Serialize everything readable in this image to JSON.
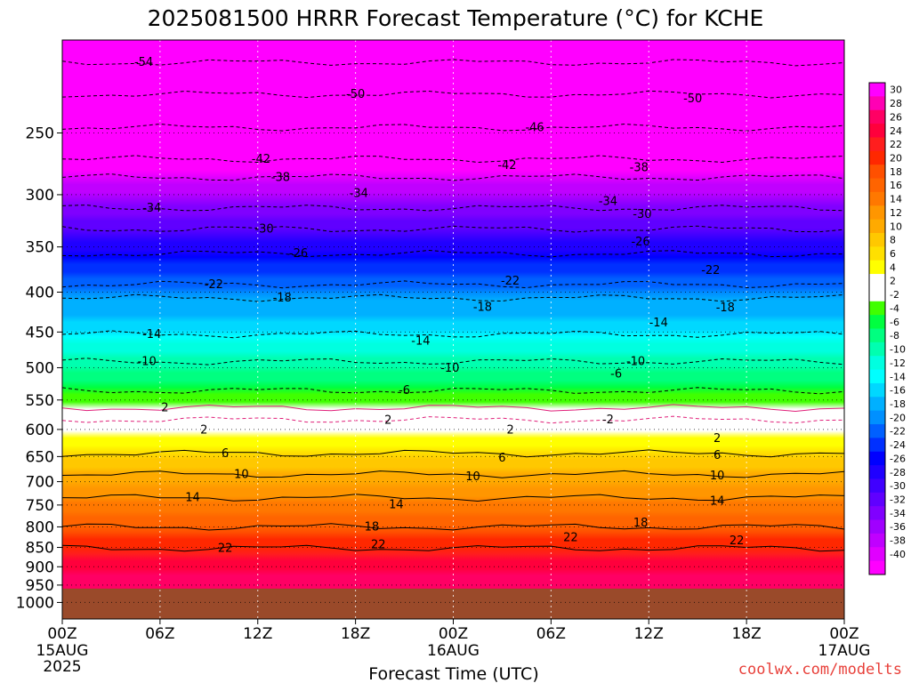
{
  "title": "2025081500 HRRR Forecast Temperature (°C) for KCHE",
  "credit": "coolwx.com/modelts",
  "xlabel": "Forecast Time (UTC)",
  "chart_data": {
    "type": "heatmap",
    "title": "2025081500 HRRR Forecast Temperature (°C) for KCHE",
    "xlabel": "Forecast Time (UTC)",
    "ylabel": "",
    "y_scale": "log",
    "y_inverted": true,
    "ylim": [
      1050,
      190
    ],
    "xlim": [
      0,
      48
    ],
    "x_ticks": [
      {
        "hour": 0,
        "label": "00Z",
        "sub": [
          "15AUG",
          "2025"
        ]
      },
      {
        "hour": 6,
        "label": "06Z",
        "sub": []
      },
      {
        "hour": 12,
        "label": "12Z",
        "sub": []
      },
      {
        "hour": 18,
        "label": "18Z",
        "sub": []
      },
      {
        "hour": 24,
        "label": "00Z",
        "sub": [
          "16AUG"
        ]
      },
      {
        "hour": 30,
        "label": "06Z",
        "sub": []
      },
      {
        "hour": 36,
        "label": "12Z",
        "sub": []
      },
      {
        "hour": 42,
        "label": "18Z",
        "sub": []
      },
      {
        "hour": 48,
        "label": "00Z",
        "sub": [
          "17AUG"
        ]
      }
    ],
    "y_ticks": [
      "250",
      "300",
      "350",
      "400",
      "450",
      "500",
      "550",
      "600",
      "650",
      "700",
      "750",
      "800",
      "850",
      "900",
      "950",
      "1000"
    ],
    "y_tick_values": [
      250,
      300,
      350,
      400,
      450,
      500,
      550,
      600,
      650,
      700,
      750,
      800,
      850,
      900,
      950,
      1000
    ],
    "surface_pressure_hpa": 960,
    "grid": true,
    "colorbar": {
      "placement": "right",
      "ticks": [
        "30",
        "28",
        "26",
        "24",
        "22",
        "20",
        "18",
        "16",
        "14",
        "12",
        "10",
        "8",
        "6",
        "4",
        "2",
        "-2",
        "-4",
        "-6",
        "-8",
        "-10",
        "-12",
        "-14",
        "-16",
        "-18",
        "-20",
        "-22",
        "-24",
        "-26",
        "-28",
        "-30",
        "-32",
        "-34",
        "-36",
        "-38",
        "-40"
      ],
      "colors": [
        "#ff00ff",
        "#ff00b4",
        "#ff0064",
        "#ff003c",
        "#ff1e1e",
        "#ff2800",
        "#ff5000",
        "#ff6400",
        "#ff7800",
        "#ff9600",
        "#ffaa00",
        "#ffc800",
        "#ffe000",
        "#ffff00",
        "#ffffff",
        "#ffffff",
        "#40ff00",
        "#00ff40",
        "#00ff80",
        "#00ffb0",
        "#00ffe0",
        "#00ffff",
        "#00d8ff",
        "#00b0ff",
        "#0090ff",
        "#0060ff",
        "#0030ff",
        "#0000ff",
        "#2000ff",
        "#4000ff",
        "#6000ff",
        "#8000ff",
        "#a000ff",
        "#c000ff",
        "#e000ff",
        "#ff00ff"
      ]
    },
    "temperature_profile": [
      {
        "p": 190,
        "t": -56
      },
      {
        "p": 200,
        "t": -55
      },
      {
        "p": 220,
        "t": -51
      },
      {
        "p": 250,
        "t": -46
      },
      {
        "p": 270,
        "t": -42
      },
      {
        "p": 300,
        "t": -36
      },
      {
        "p": 320,
        "t": -32
      },
      {
        "p": 350,
        "t": -27
      },
      {
        "p": 380,
        "t": -22
      },
      {
        "p": 400,
        "t": -19
      },
      {
        "p": 450,
        "t": -14
      },
      {
        "p": 480,
        "t": -10
      },
      {
        "p": 520,
        "t": -6
      },
      {
        "p": 560,
        "t": -2
      },
      {
        "p": 585,
        "t": 2
      },
      {
        "p": 620,
        "t": 5
      },
      {
        "p": 650,
        "t": 8
      },
      {
        "p": 700,
        "t": 11
      },
      {
        "p": 750,
        "t": 15
      },
      {
        "p": 800,
        "t": 18
      },
      {
        "p": 850,
        "t": 22
      },
      {
        "p": 900,
        "t": 25
      },
      {
        "p": 960,
        "t": 28
      }
    ],
    "contour_labels": [
      {
        "t": "-54",
        "hour": 5.0,
        "p": 203
      },
      {
        "t": "-50",
        "hour": 18.0,
        "p": 223
      },
      {
        "t": "-50",
        "hour": 38.7,
        "p": 226
      },
      {
        "t": "-46",
        "hour": 29.0,
        "p": 246
      },
      {
        "t": "-42",
        "hour": 12.2,
        "p": 270
      },
      {
        "t": "-42",
        "hour": 27.3,
        "p": 275
      },
      {
        "t": "-38",
        "hour": 13.4,
        "p": 285
      },
      {
        "t": "-38",
        "hour": 35.4,
        "p": 277
      },
      {
        "t": "-34",
        "hour": 5.5,
        "p": 312
      },
      {
        "t": "-34",
        "hour": 18.2,
        "p": 299
      },
      {
        "t": "-34",
        "hour": 33.5,
        "p": 306
      },
      {
        "t": "-30",
        "hour": 12.4,
        "p": 332
      },
      {
        "t": "-30",
        "hour": 35.6,
        "p": 318
      },
      {
        "t": "-26",
        "hour": 14.5,
        "p": 357
      },
      {
        "t": "-26",
        "hour": 35.5,
        "p": 345
      },
      {
        "t": "-22",
        "hour": 9.3,
        "p": 391
      },
      {
        "t": "-22",
        "hour": 27.5,
        "p": 387
      },
      {
        "t": "-22",
        "hour": 39.8,
        "p": 375
      },
      {
        "t": "-18",
        "hour": 13.5,
        "p": 407
      },
      {
        "t": "-18",
        "hour": 25.8,
        "p": 418
      },
      {
        "t": "-18",
        "hour": 40.7,
        "p": 419
      },
      {
        "t": "-14",
        "hour": 5.5,
        "p": 453
      },
      {
        "t": "-14",
        "hour": 22.0,
        "p": 462
      },
      {
        "t": "-14",
        "hour": 36.6,
        "p": 438
      },
      {
        "t": "-10",
        "hour": 5.2,
        "p": 491
      },
      {
        "t": "-10",
        "hour": 23.8,
        "p": 501
      },
      {
        "t": "-10",
        "hour": 35.2,
        "p": 491
      },
      {
        "t": "-6",
        "hour": 21.0,
        "p": 535
      },
      {
        "t": "-6",
        "hour": 34.0,
        "p": 509
      },
      {
        "t": "-2",
        "hour": 33.5,
        "p": 583
      },
      {
        "t": "2",
        "hour": 6.3,
        "p": 563
      },
      {
        "t": "2",
        "hour": 8.7,
        "p": 601
      },
      {
        "t": "2",
        "hour": 20.0,
        "p": 584
      },
      {
        "t": "2",
        "hour": 27.5,
        "p": 601
      },
      {
        "t": "2",
        "hour": 40.2,
        "p": 616
      },
      {
        "t": "6",
        "hour": 10.0,
        "p": 644
      },
      {
        "t": "6",
        "hour": 27.0,
        "p": 653
      },
      {
        "t": "6",
        "hour": 40.2,
        "p": 648
      },
      {
        "t": "10",
        "hour": 11.0,
        "p": 685
      },
      {
        "t": "10",
        "hour": 25.2,
        "p": 690
      },
      {
        "t": "10",
        "hour": 40.2,
        "p": 688
      },
      {
        "t": "14",
        "hour": 8.0,
        "p": 734
      },
      {
        "t": "14",
        "hour": 20.5,
        "p": 749
      },
      {
        "t": "14",
        "hour": 40.2,
        "p": 741
      },
      {
        "t": "18",
        "hour": 19.0,
        "p": 800
      },
      {
        "t": "18",
        "hour": 35.5,
        "p": 791
      },
      {
        "t": "22",
        "hour": 10.0,
        "p": 852
      },
      {
        "t": "22",
        "hour": 19.4,
        "p": 843
      },
      {
        "t": "22",
        "hour": 31.2,
        "p": 826
      },
      {
        "t": "22",
        "hour": 41.4,
        "p": 833
      }
    ]
  }
}
